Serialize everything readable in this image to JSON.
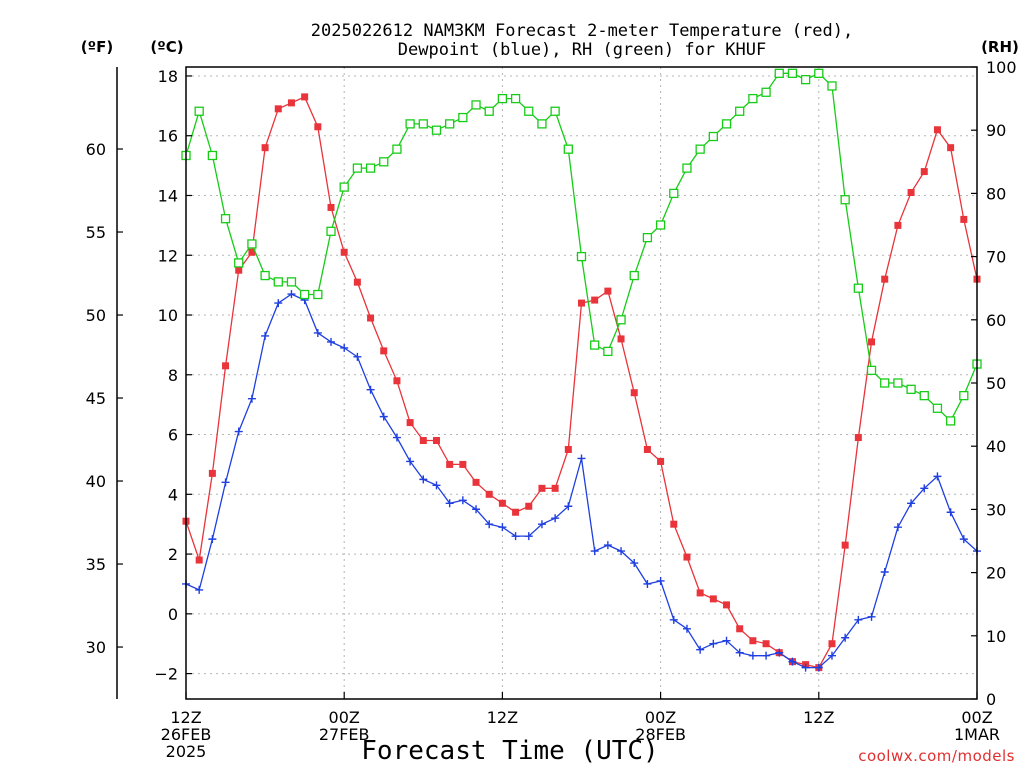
{
  "chart_data": {
    "type": "line",
    "title_line1": "2025022612 NAM3KM Forecast 2-meter Temperature (red),",
    "title_line2": "Dewpoint (blue), RH (green) for KHUF",
    "xlabel": "Forecast Time (UTC)",
    "credit": "coolwx.com/models",
    "units": {
      "fahrenheit": "(ºF)",
      "celsius": "(ºC)",
      "rh": "(RH)"
    },
    "x_hours": [
      0,
      1,
      2,
      3,
      4,
      5,
      6,
      7,
      8,
      9,
      10,
      11,
      12,
      13,
      14,
      15,
      16,
      17,
      18,
      19,
      20,
      21,
      22,
      23,
      24,
      25,
      26,
      27,
      28,
      29,
      30,
      31,
      32,
      33,
      34,
      35,
      36,
      37,
      38,
      39,
      40,
      41,
      42,
      43,
      44,
      45,
      46,
      47,
      48,
      49,
      50,
      51,
      52,
      53,
      54,
      55,
      56,
      57,
      58,
      59,
      60
    ],
    "xlim": [
      0,
      60
    ],
    "x_ticks": [
      {
        "hour": 0,
        "lines": [
          "12Z",
          "26FEB",
          "2025"
        ]
      },
      {
        "hour": 12,
        "lines": [
          "00Z",
          "27FEB"
        ]
      },
      {
        "hour": 24,
        "lines": [
          "12Z"
        ]
      },
      {
        "hour": 36,
        "lines": [
          "00Z",
          "28FEB"
        ]
      },
      {
        "hour": 48,
        "lines": [
          "12Z"
        ]
      },
      {
        "hour": 60,
        "lines": [
          "00Z",
          "1MAR"
        ]
      }
    ],
    "y_celsius": {
      "ylim": [
        -2.85,
        18.3
      ],
      "ticks": [
        -2,
        0,
        2,
        4,
        6,
        8,
        10,
        12,
        14,
        16,
        18
      ]
    },
    "y_fahrenheit": {
      "ticks": [
        30,
        35,
        40,
        45,
        50,
        55,
        60
      ]
    },
    "y_rh": {
      "ylim": [
        0,
        100
      ],
      "ticks": [
        0,
        10,
        20,
        30,
        40,
        50,
        60,
        70,
        80,
        90,
        100
      ]
    },
    "grid": true,
    "colors": {
      "temperature": "#e8343a",
      "dewpoint": "#1f3fe0",
      "rh": "#17cc17"
    },
    "series": [
      {
        "key": "temperature",
        "axis": "celsius",
        "marker": "filled-square",
        "values": [
          3.1,
          1.8,
          4.7,
          8.3,
          11.5,
          12.1,
          15.6,
          16.9,
          17.1,
          17.3,
          16.3,
          13.6,
          12.1,
          11.1,
          9.9,
          8.8,
          7.8,
          6.4,
          5.8,
          5.8,
          5.0,
          5.0,
          4.4,
          4.0,
          3.7,
          3.4,
          3.6,
          4.2,
          4.2,
          5.5,
          10.4,
          10.5,
          10.8,
          9.2,
          7.4,
          5.5,
          5.1,
          3.0,
          1.9,
          0.7,
          0.5,
          0.3,
          -0.5,
          -0.9,
          -1.0,
          -1.3,
          -1.6,
          -1.7,
          -1.8,
          -1.0,
          2.3,
          5.9,
          9.1,
          11.2,
          13.0,
          14.1,
          14.8,
          16.2,
          15.6,
          13.2,
          11.2
        ]
      },
      {
        "key": "dewpoint",
        "axis": "celsius",
        "marker": "plus",
        "values": [
          1.0,
          0.8,
          2.5,
          4.4,
          6.1,
          7.2,
          9.3,
          10.4,
          10.7,
          10.5,
          9.4,
          9.1,
          8.9,
          8.6,
          7.5,
          6.6,
          5.9,
          5.1,
          4.5,
          4.3,
          3.7,
          3.8,
          3.5,
          3.0,
          2.9,
          2.6,
          2.6,
          3.0,
          3.2,
          3.6,
          5.2,
          2.1,
          2.3,
          2.1,
          1.7,
          1.0,
          1.1,
          -0.2,
          -0.5,
          -1.2,
          -1.0,
          -0.9,
          -1.3,
          -1.4,
          -1.4,
          -1.3,
          -1.6,
          -1.8,
          -1.8,
          -1.4,
          -0.8,
          -0.2,
          -0.1,
          1.4,
          2.9,
          3.7,
          4.2,
          4.6,
          3.4,
          2.5,
          2.1
        ]
      },
      {
        "key": "rh",
        "axis": "rh",
        "marker": "open-square",
        "values": [
          86,
          93,
          86,
          76,
          69,
          72,
          67,
          66,
          66,
          64,
          64,
          74,
          81,
          84,
          84,
          85,
          87,
          91,
          91,
          90,
          91,
          92,
          94,
          93,
          95,
          95,
          93,
          91,
          93,
          87,
          70,
          56,
          55,
          60,
          67,
          73,
          75,
          80,
          84,
          87,
          89,
          91,
          93,
          95,
          96,
          99,
          99,
          98,
          99,
          97,
          79,
          65,
          52,
          50,
          50,
          49,
          48,
          46,
          44,
          48,
          53
        ]
      }
    ]
  }
}
